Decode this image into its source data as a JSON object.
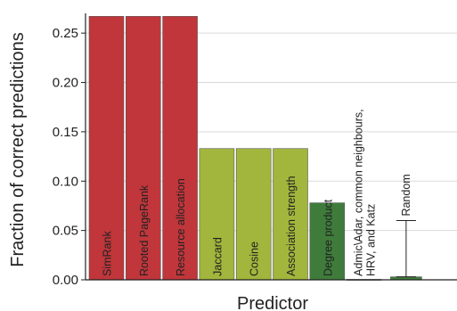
{
  "chart_data": {
    "type": "bar",
    "xlabel": "Predictor",
    "ylabel": "Fraction of correct predictions",
    "ylim": [
      0,
      0.27
    ],
    "yticks": [
      "0.00",
      "0.05",
      "0.10",
      "0.15",
      "0.20",
      "0.25"
    ],
    "grid": true,
    "bars": [
      {
        "label": "SimRank",
        "value": 0.267,
        "color": "#c0363b"
      },
      {
        "label": "Rooted PageRank",
        "value": 0.267,
        "color": "#c0363b"
      },
      {
        "label": "Resource allocation",
        "value": 0.267,
        "color": "#c0363b"
      },
      {
        "label": "Jaccard",
        "value": 0.133,
        "color": "#a2b53c"
      },
      {
        "label": "Cosine",
        "value": 0.133,
        "color": "#a2b53c"
      },
      {
        "label": "Association strength",
        "value": 0.133,
        "color": "#a2b53c"
      },
      {
        "label": "Degree product",
        "value": 0.078,
        "color": "#3f7c3b"
      },
      {
        "label": "Admic\\Adar, common neighbours,\nHRV, and Katz",
        "value": 0.0,
        "color": "#3f7c3b"
      }
    ],
    "random": {
      "label": "Random",
      "value": 0.003,
      "error_upper": 0.057,
      "error_lower": 0.0
    }
  }
}
